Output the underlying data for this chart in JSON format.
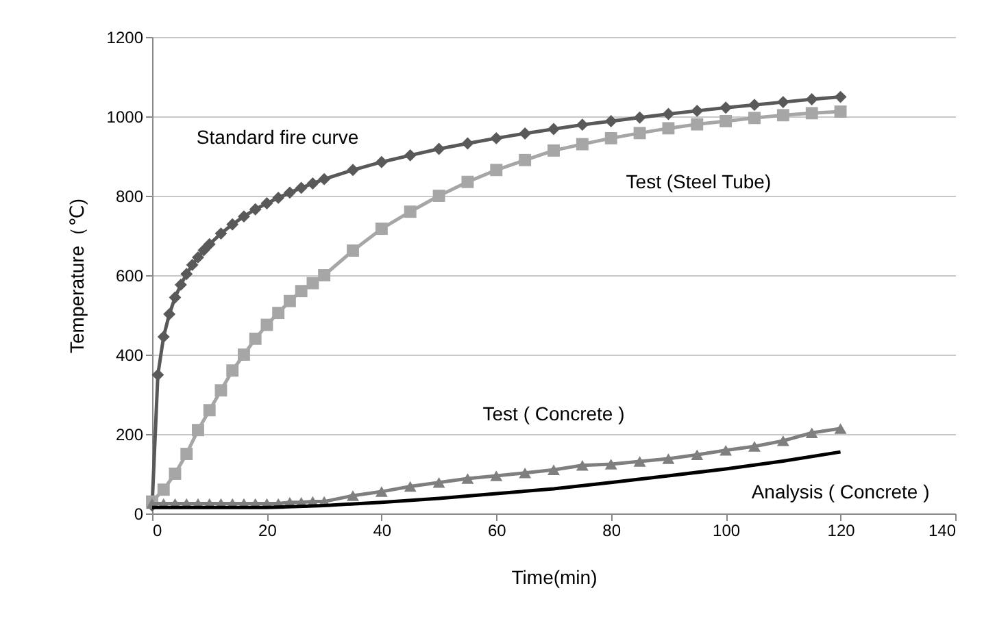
{
  "chart_data": {
    "type": "line",
    "xlabel": "Time(min)",
    "ylabel": "Temperature（℃)",
    "xlim": [
      0,
      140
    ],
    "xticks": [
      0,
      20,
      40,
      60,
      80,
      100,
      120,
      140
    ],
    "ylim": [
      0,
      1200
    ],
    "yticks": [
      0,
      200,
      400,
      600,
      800,
      1000,
      1200
    ],
    "grid": "y",
    "series": [
      {
        "name": "Standard fire curve",
        "color": "#595959",
        "marker": "diamond",
        "x": [
          0,
          1,
          2,
          3,
          4,
          5,
          6,
          7,
          8,
          9,
          10,
          12,
          14,
          16,
          18,
          20,
          22,
          24,
          26,
          28,
          30,
          35,
          40,
          45,
          50,
          55,
          60,
          65,
          70,
          75,
          80,
          85,
          90,
          95,
          100,
          105,
          110,
          115,
          120
        ],
        "values": [
          20,
          349,
          445,
          502,
          544,
          576,
          603,
          626,
          645,
          663,
          678,
          705,
          728,
          748,
          766,
          781,
          795,
          808,
          820,
          831,
          842,
          865,
          885,
          902,
          918,
          932,
          945,
          957,
          968,
          979,
          988,
          997,
          1006,
          1014,
          1022,
          1029,
          1036,
          1043,
          1049
        ]
      },
      {
        "name": "Test (Steel Tube)",
        "color": "#a6a6a6",
        "marker": "square",
        "x": [
          0,
          2,
          4,
          6,
          8,
          10,
          12,
          14,
          16,
          18,
          20,
          22,
          24,
          26,
          28,
          30,
          35,
          40,
          45,
          50,
          55,
          60,
          65,
          70,
          75,
          80,
          85,
          90,
          95,
          100,
          105,
          110,
          115,
          120
        ],
        "values": [
          30,
          60,
          100,
          150,
          210,
          260,
          310,
          360,
          400,
          440,
          475,
          505,
          535,
          560,
          580,
          600,
          662,
          717,
          760,
          800,
          835,
          865,
          890,
          914,
          930,
          945,
          958,
          970,
          980,
          988,
          996,
          1003,
          1008,
          1012
        ]
      },
      {
        "name": "Test ( Concrete )",
        "color": "#7f7f7f",
        "marker": "triangle",
        "x": [
          0,
          2,
          4,
          6,
          8,
          10,
          12,
          14,
          16,
          18,
          20,
          22,
          24,
          26,
          28,
          30,
          35,
          40,
          45,
          50,
          55,
          60,
          65,
          70,
          75,
          80,
          85,
          90,
          95,
          100,
          105,
          110,
          115,
          120
        ],
        "values": [
          25,
          25,
          25,
          25,
          25,
          25,
          25,
          25,
          25,
          25,
          25,
          25,
          28,
          28,
          30,
          30,
          45,
          55,
          68,
          78,
          88,
          95,
          102,
          110,
          121,
          124,
          131,
          138,
          148,
          159,
          169,
          183,
          203,
          214
        ]
      },
      {
        "name": "Analysis ( Concrete )",
        "color": "#000000",
        "marker": "none",
        "x": [
          0,
          10,
          20,
          30,
          40,
          50,
          60,
          70,
          80,
          90,
          100,
          110,
          120
        ],
        "values": [
          15,
          15,
          15,
          20,
          28,
          38,
          50,
          62,
          78,
          95,
          112,
          132,
          155
        ]
      }
    ]
  }
}
